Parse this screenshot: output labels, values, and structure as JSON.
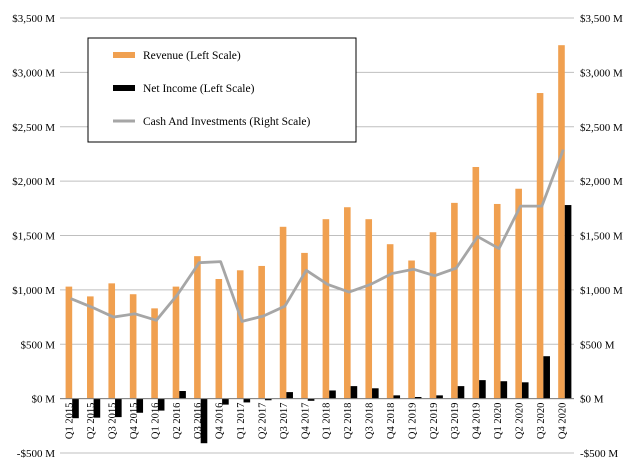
{
  "chart_data": {
    "type": "bar",
    "title": "",
    "xlabel": "",
    "ylabel": "",
    "categories": [
      "Q1 2015",
      "Q2 2015",
      "Q3 2015",
      "Q4 2015",
      "Q1 2016",
      "Q2 2016",
      "Q3 2016",
      "Q4 2016",
      "Q1 2017",
      "Q2 2017",
      "Q3 2017",
      "Q4 2017",
      "Q1 2018",
      "Q2 2018",
      "Q3 2018",
      "Q4 2018",
      "Q1 2019",
      "Q2 2019",
      "Q3 2019",
      "Q4 2019",
      "Q1 2020",
      "Q2 2020",
      "Q3 2020",
      "Q4 2020"
    ],
    "ylim": [
      -500,
      3500
    ],
    "y_ticks": [
      -500,
      0,
      500,
      1000,
      1500,
      2000,
      2500,
      3000,
      3500
    ],
    "y_tick_labels": [
      "-$500 M",
      "$0 M",
      "$500 M",
      "$1,000 M",
      "$1,500 M",
      "$2,000 M",
      "$2,500 M",
      "$3,000 M",
      "$3,500 M"
    ],
    "grid": true,
    "legend_position": "top-left",
    "series": [
      {
        "name": "Revenue (Left Scale)",
        "kind": "bar",
        "axis": "left",
        "color": "#F0A050",
        "values": [
          1030,
          940,
          1060,
          960,
          830,
          1030,
          1310,
          1100,
          1180,
          1220,
          1580,
          1340,
          1650,
          1760,
          1650,
          1420,
          1270,
          1530,
          1800,
          2130,
          1790,
          1930,
          2810,
          3250
        ]
      },
      {
        "name": "Net Income (Left Scale)",
        "kind": "bar",
        "axis": "left",
        "color": "#000000",
        "values": [
          -180,
          -175,
          -170,
          -130,
          -110,
          70,
          -410,
          -55,
          -35,
          -15,
          60,
          -20,
          75,
          115,
          95,
          30,
          15,
          30,
          115,
          170,
          160,
          150,
          390,
          1780
        ]
      },
      {
        "name": "Cash And Investments (Right Scale)",
        "kind": "line",
        "axis": "right",
        "color": "#A6A6A6",
        "values": [
          920,
          840,
          750,
          780,
          720,
          960,
          1250,
          1260,
          710,
          760,
          850,
          1180,
          1050,
          980,
          1050,
          1150,
          1190,
          1130,
          1200,
          1490,
          1380,
          1770,
          1770,
          2290
        ]
      }
    ]
  }
}
